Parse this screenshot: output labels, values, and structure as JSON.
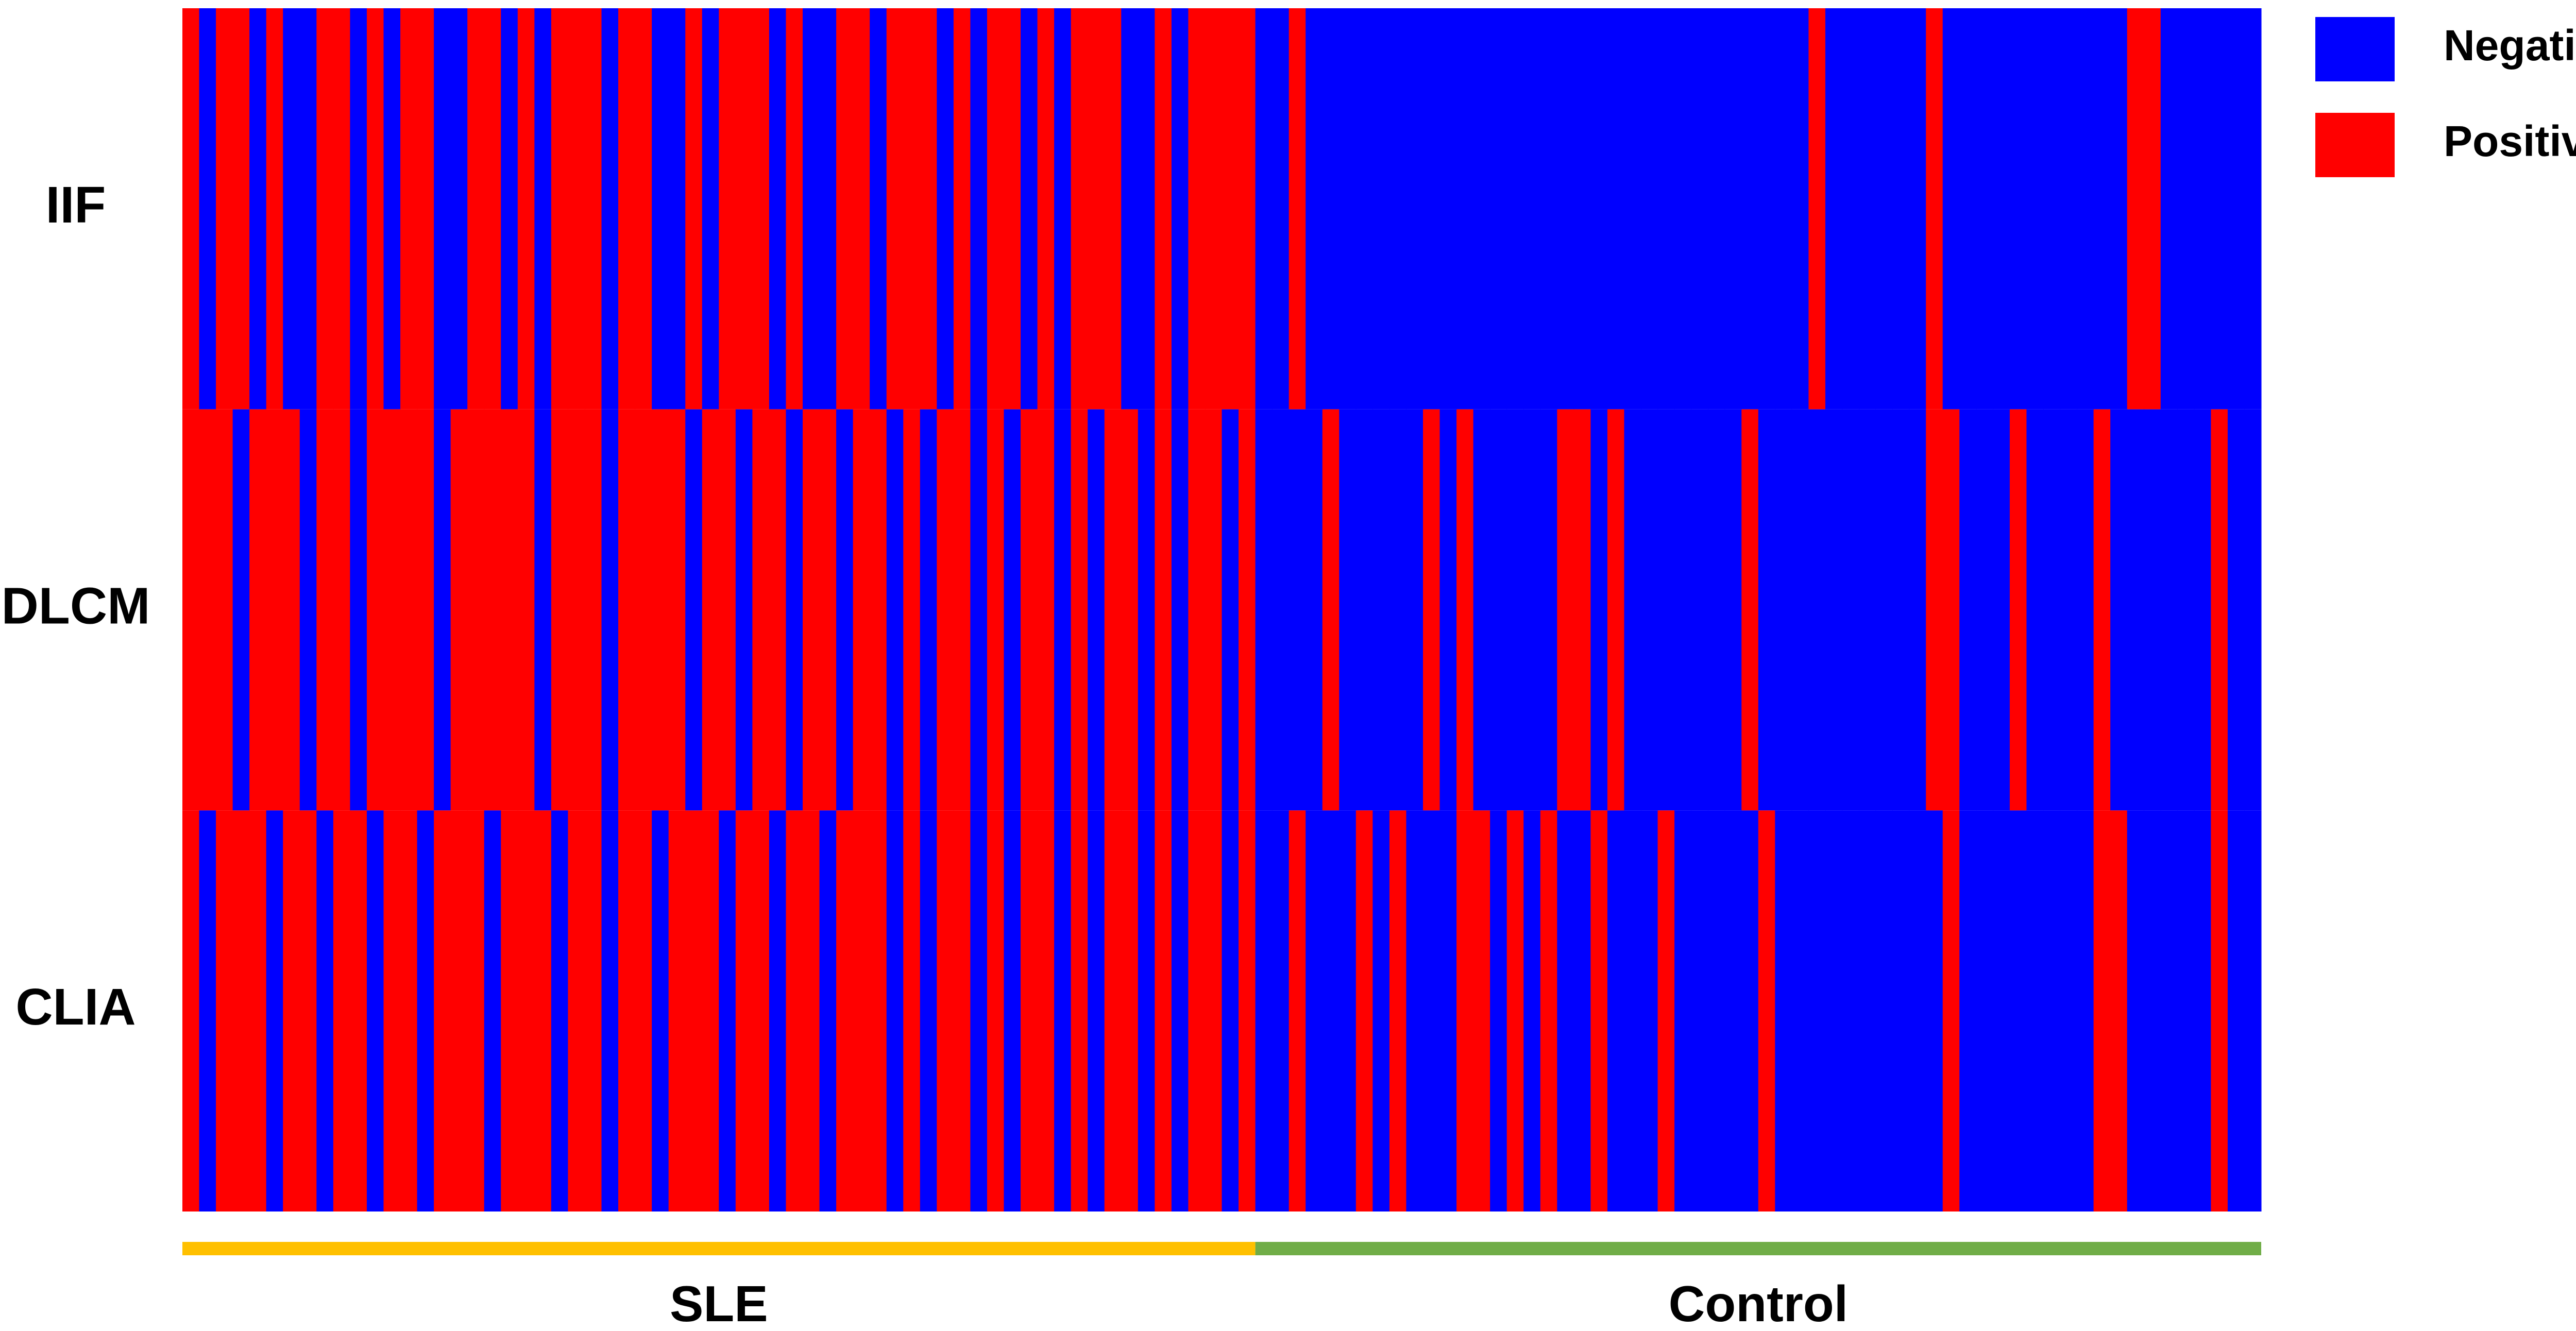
{
  "chart_data": {
    "type": "heatmap",
    "legend": [
      {
        "name": "Negative",
        "color": "#0000ff"
      },
      {
        "name": "Positive",
        "color": "#ff0000"
      }
    ],
    "groups": [
      {
        "name": "SLE",
        "color": "#ffc000"
      },
      {
        "name": "Control",
        "color": "#70ad47"
      }
    ],
    "series": [
      {
        "name": "IIF",
        "values": [
          [
            1,
            0,
            1,
            1,
            0,
            1,
            0,
            0,
            1,
            1,
            0,
            1,
            0,
            1,
            1,
            0,
            0,
            1,
            1,
            0,
            1,
            0,
            1,
            1,
            1,
            0,
            1,
            1,
            0,
            0,
            1,
            0,
            1,
            1,
            1,
            0,
            1,
            0,
            0,
            1,
            1,
            0,
            1,
            1,
            1,
            0,
            1,
            0,
            1,
            1,
            0,
            1,
            0,
            1,
            1,
            1,
            0,
            0,
            1,
            0,
            1,
            1,
            1,
            1
          ],
          [
            0,
            0,
            1,
            0,
            0,
            0,
            0,
            0,
            0,
            0,
            0,
            0,
            0,
            0,
            0,
            0,
            0,
            0,
            0,
            0,
            0,
            0,
            0,
            0,
            0,
            0,
            0,
            0,
            0,
            0,
            0,
            0,
            0,
            1,
            0,
            0,
            0,
            0,
            0,
            0,
            1,
            0,
            0,
            0,
            0,
            0,
            0,
            0,
            0,
            0,
            0,
            0,
            1,
            1,
            0,
            0,
            0,
            0,
            0,
            0
          ]
        ]
      },
      {
        "name": "DLCM",
        "values": [
          [
            1,
            1,
            1,
            0,
            1,
            1,
            1,
            0,
            1,
            1,
            0,
            1,
            1,
            1,
            1,
            0,
            1,
            1,
            1,
            1,
            1,
            0,
            1,
            1,
            1,
            0,
            1,
            1,
            1,
            1,
            0,
            1,
            1,
            0,
            1,
            1,
            0,
            1,
            1,
            0,
            1,
            1,
            0,
            1,
            0,
            1,
            1,
            0,
            1,
            0,
            1,
            1,
            0,
            1,
            0,
            1,
            1,
            0,
            1,
            0,
            1,
            1,
            0,
            1
          ],
          [
            0,
            0,
            0,
            0,
            1,
            0,
            0,
            0,
            0,
            0,
            1,
            0,
            1,
            0,
            0,
            0,
            0,
            0,
            1,
            1,
            0,
            1,
            0,
            0,
            0,
            0,
            0,
            0,
            0,
            1,
            0,
            0,
            0,
            0,
            0,
            0,
            0,
            0,
            0,
            0,
            1,
            1,
            0,
            0,
            0,
            1,
            0,
            0,
            0,
            0,
            1,
            0,
            0,
            0,
            0,
            0,
            0,
            1,
            0,
            0
          ]
        ]
      },
      {
        "name": "CLIA",
        "values": [
          [
            1,
            0,
            1,
            1,
            1,
            0,
            1,
            1,
            0,
            1,
            1,
            0,
            1,
            1,
            0,
            1,
            1,
            1,
            0,
            1,
            1,
            1,
            0,
            1,
            1,
            0,
            1,
            1,
            0,
            1,
            1,
            1,
            0,
            1,
            1,
            0,
            1,
            1,
            0,
            1,
            1,
            1,
            0,
            1,
            0,
            1,
            1,
            0,
            1,
            0,
            1,
            1,
            0,
            1,
            0,
            1,
            1,
            0,
            1,
            0,
            1,
            1,
            0,
            1
          ],
          [
            0,
            0,
            1,
            0,
            0,
            0,
            1,
            0,
            1,
            0,
            0,
            0,
            1,
            1,
            0,
            1,
            0,
            1,
            0,
            0,
            1,
            0,
            0,
            0,
            1,
            0,
            0,
            0,
            0,
            0,
            1,
            0,
            0,
            0,
            0,
            0,
            0,
            0,
            0,
            0,
            0,
            1,
            0,
            0,
            0,
            0,
            0,
            0,
            0,
            0,
            1,
            1,
            0,
            0,
            0,
            0,
            0,
            1,
            0,
            0
          ]
        ]
      }
    ]
  }
}
